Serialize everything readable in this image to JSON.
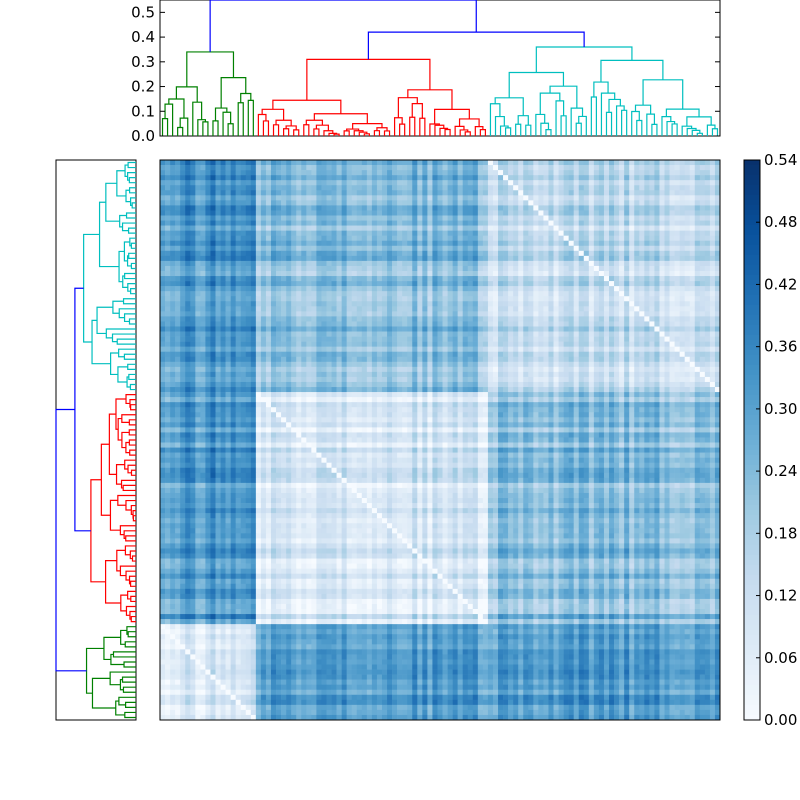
{
  "chart_data": [
    {
      "type": "dendrogram",
      "orientation": "top",
      "ylim": [
        0.0,
        0.55
      ],
      "yticks": [
        "0.0",
        "0.1",
        "0.2",
        "0.3",
        "0.4",
        "0.5"
      ],
      "leaf_count": 111,
      "cluster_colors": [
        "#008000",
        "#ff0000",
        "#00bfbf"
      ],
      "link_color": "#0000ff",
      "clusters": [
        {
          "color": "#008000",
          "leaves": 19,
          "height": 0.34
        },
        {
          "color": "#ff0000",
          "leaves": 46,
          "height": 0.31
        },
        {
          "color": "#00bfbf",
          "leaves": 46,
          "height": 0.36
        }
      ],
      "root_height": 0.55,
      "second_merge_height": 0.42
    },
    {
      "type": "dendrogram",
      "orientation": "left",
      "leaf_count": 111,
      "clusters": [
        {
          "color": "#00bfbf",
          "leaves": 46,
          "height": 0.36
        },
        {
          "color": "#ff0000",
          "leaves": 46,
          "height": 0.31
        },
        {
          "color": "#008000",
          "leaves": 19,
          "height": 0.34
        }
      ],
      "link_color": "#0000ff"
    },
    {
      "type": "heatmap",
      "rows": 111,
      "cols": 111,
      "value_range": [
        0.0,
        0.54
      ],
      "colormap": "Blues",
      "diagonal_value": 0.0,
      "colorbar_ticks": [
        "0.00",
        "0.06",
        "0.12",
        "0.18",
        "0.24",
        "0.30",
        "0.36",
        "0.42",
        "0.48",
        "0.54"
      ],
      "blocks": {
        "col_order": [
          "green",
          "red",
          "cyan"
        ],
        "row_order": [
          "cyan",
          "red",
          "green"
        ],
        "mean_values": {
          "green-green": 0.1,
          "green-red": 0.33,
          "green-cyan": 0.33,
          "red-red": 0.1,
          "red-cyan": 0.24,
          "cyan-cyan": 0.14
        }
      }
    }
  ]
}
